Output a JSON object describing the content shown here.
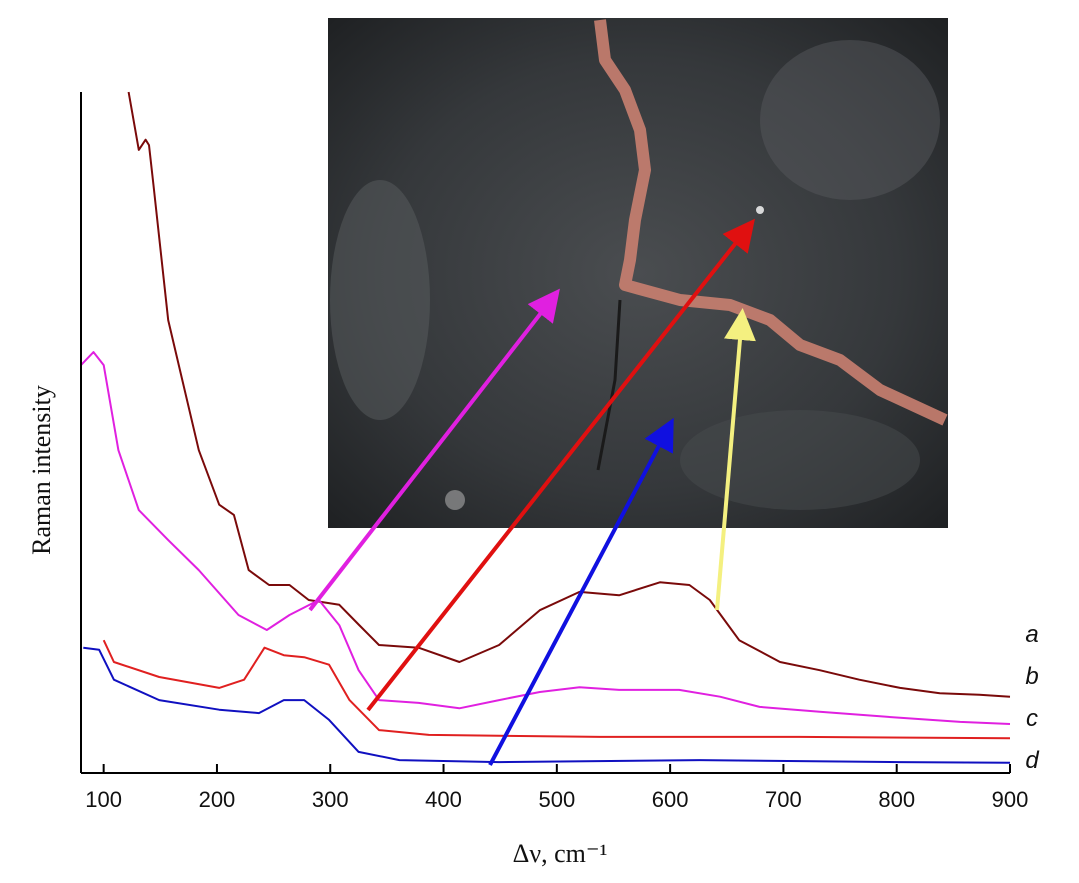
{
  "chart_data": {
    "type": "line",
    "xlabel": "Δν, cm⁻¹",
    "ylabel": "Raman intensity",
    "xlim": [
      80,
      900
    ],
    "ylim": [
      0,
      100
    ],
    "xticks": [
      100,
      200,
      300,
      400,
      500,
      600,
      700,
      800,
      900
    ],
    "series": [
      {
        "name": "a",
        "color": "#7a0a0a",
        "x": [
          122,
          131,
          137,
          140,
          144,
          157,
          184,
          202,
          215,
          228,
          246,
          264,
          281,
          308,
          325,
          343,
          378,
          414,
          449,
          485,
          520,
          555,
          591,
          617,
          635,
          661,
          697,
          732,
          767,
          803,
          838,
          873,
          900
        ],
        "values": [
          100,
          91.5,
          93,
          92.2,
          86.3,
          66.5,
          47.4,
          39.4,
          37.9,
          29.8,
          27.6,
          27.6,
          25.4,
          24.7,
          21.8,
          18.8,
          18.4,
          16.3,
          18.8,
          23.9,
          26.6,
          26.1,
          28.0,
          27.6,
          25.4,
          19.5,
          16.3,
          15.1,
          13.7,
          12.5,
          11.7,
          11.5,
          11.2
        ]
      },
      {
        "name": "b",
        "color": "#e020e0",
        "x": [
          80,
          91,
          100,
          113,
          131,
          157,
          184,
          219,
          244,
          264,
          290,
          308,
          325,
          343,
          378,
          414,
          449,
          485,
          520,
          555,
          608,
          644,
          679,
          732,
          803,
          856,
          900
        ],
        "values": [
          59.9,
          61.8,
          59.9,
          47.4,
          38.6,
          34.2,
          29.8,
          23.2,
          21.0,
          23.2,
          25.4,
          21.7,
          15.1,
          10.7,
          10.3,
          9.5,
          10.7,
          11.9,
          12.6,
          12.2,
          12.2,
          11.2,
          9.7,
          9.0,
          8.1,
          7.5,
          7.2
        ]
      },
      {
        "name": "c",
        "color": "#e02020",
        "x": [
          100,
          109,
          149,
          202,
          224,
          242,
          259,
          277,
          299,
          317,
          343,
          387,
          538,
          714,
          900
        ],
        "values": [
          19.5,
          16.3,
          14.1,
          12.5,
          13.7,
          18.4,
          17.3,
          17.0,
          15.9,
          10.7,
          6.3,
          5.6,
          5.3,
          5.3,
          5.1
        ]
      },
      {
        "name": "d",
        "color": "#1010c0",
        "x": [
          82,
          96,
          109,
          149,
          202,
          237,
          259,
          277,
          299,
          325,
          361,
          449,
          626,
          803,
          900
        ],
        "values": [
          18.4,
          18.1,
          13.7,
          10.7,
          9.3,
          8.8,
          10.7,
          10.7,
          7.8,
          3.1,
          1.9,
          1.6,
          1.9,
          1.6,
          1.5
        ]
      }
    ]
  }
}
